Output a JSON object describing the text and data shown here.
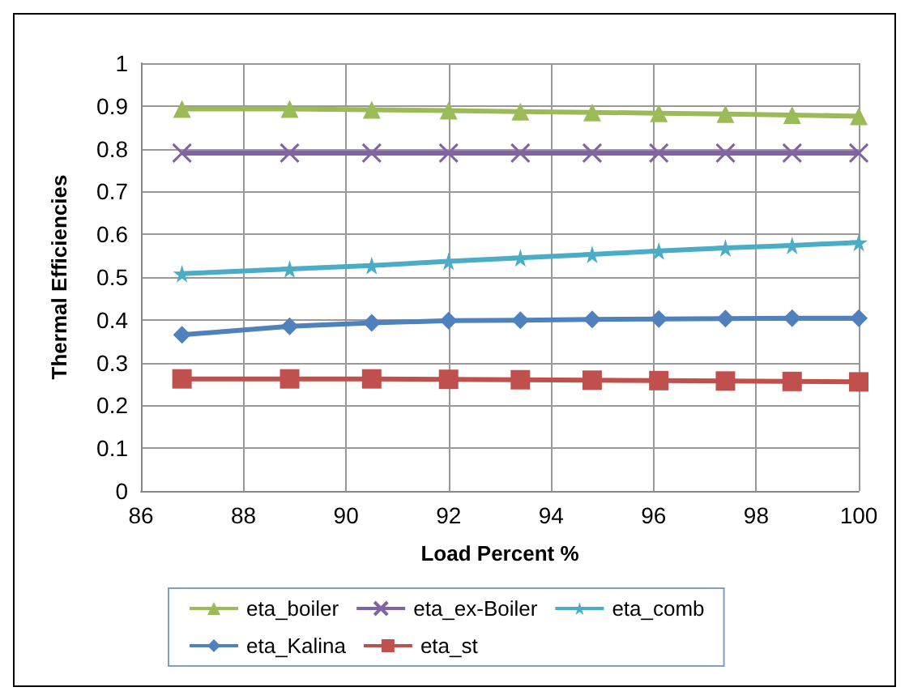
{
  "chart_data": {
    "type": "line",
    "xlabel": "Load Percent %",
    "ylabel": "Thermal Efficiencies",
    "x": [
      86.8,
      88.9,
      90.5,
      92,
      93.4,
      94.8,
      96.1,
      97.4,
      98.7,
      100
    ],
    "series": [
      {
        "name": "eta_boiler",
        "color": "#9bbb59",
        "marker": "triangle",
        "values": [
          0.893,
          0.893,
          0.891,
          0.889,
          0.887,
          0.885,
          0.883,
          0.881,
          0.879,
          0.876
        ]
      },
      {
        "name": "eta_ex-Boiler",
        "color": "#8064a2",
        "marker": "cross",
        "values": [
          0.79,
          0.79,
          0.79,
          0.79,
          0.79,
          0.79,
          0.79,
          0.79,
          0.79,
          0.79
        ]
      },
      {
        "name": "eta_comb",
        "color": "#4bacc6",
        "marker": "star",
        "values": [
          0.508,
          0.519,
          0.527,
          0.537,
          0.545,
          0.553,
          0.561,
          0.568,
          0.574,
          0.581
        ]
      },
      {
        "name": "eta_Kalina",
        "color": "#4f81bd",
        "marker": "diamond",
        "values": [
          0.365,
          0.385,
          0.393,
          0.398,
          0.399,
          0.401,
          0.402,
          0.403,
          0.404,
          0.404
        ]
      },
      {
        "name": "eta_st",
        "color": "#c0504d",
        "marker": "square",
        "values": [
          0.262,
          0.262,
          0.262,
          0.261,
          0.26,
          0.259,
          0.258,
          0.257,
          0.256,
          0.255
        ]
      }
    ],
    "xlim": [
      86,
      100
    ],
    "xticks": [
      86,
      88,
      90,
      92,
      94,
      96,
      98,
      100
    ],
    "ylim": [
      0,
      1
    ],
    "yticks": [
      0,
      0.1,
      0.2,
      0.3,
      0.4,
      0.5,
      0.6,
      0.7,
      0.8,
      0.9,
      1
    ],
    "grid": true,
    "legend": "bottom",
    "line_style": "solid"
  }
}
